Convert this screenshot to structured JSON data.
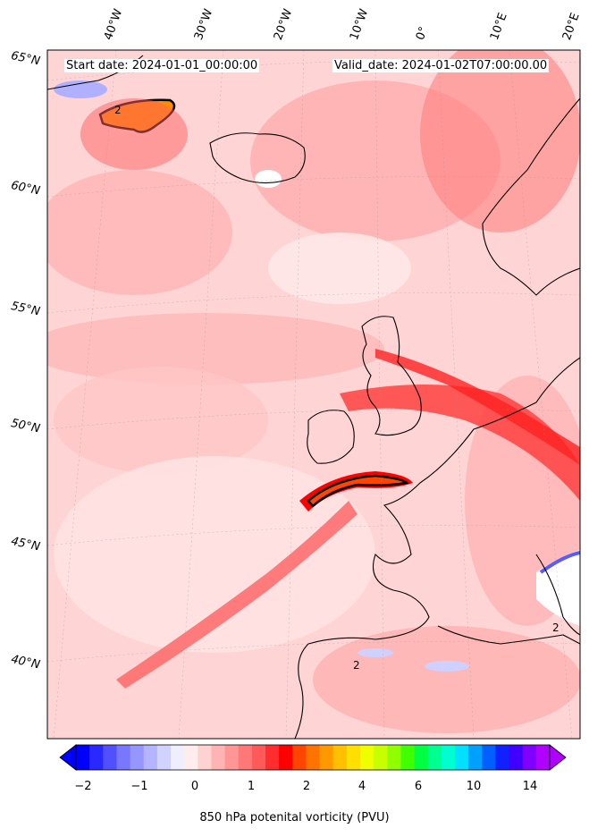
{
  "map": {
    "start_date": "Start date: 2024-01-01_00:00:00",
    "valid_date": "Valid_date: 2024-01-02T07:00:00.00",
    "lat_labels": [
      "65°N",
      "60°N",
      "55°N",
      "50°N",
      "45°N",
      "40°N"
    ],
    "lon_labels": [
      "40°W",
      "30°W",
      "20°W",
      "10°W",
      "0°",
      "10°E",
      "20°E"
    ],
    "contour_label": "2",
    "colors": {
      "background_low": "#ffd9d9",
      "mid": "#ff7a7a",
      "high": "#ff0000",
      "peak": "#ff8c00",
      "negative": "#9a9aff",
      "coast": "#000000"
    }
  },
  "colorbar": {
    "ticks": [
      "−2",
      "−1",
      "0",
      "1",
      "2",
      "4",
      "6",
      "10",
      "14"
    ],
    "label": "850 hPa potenital vorticity (PVU)",
    "colors": [
      "#0000ff",
      "#2828ff",
      "#5050ff",
      "#7878ff",
      "#9696ff",
      "#b4b4ff",
      "#d2d2ff",
      "#eeeeff",
      "#ffecec",
      "#ffd2d2",
      "#ffb4b4",
      "#ff9696",
      "#ff7878",
      "#ff5a5a",
      "#ff2d2d",
      "#ff0000",
      "#ff4500",
      "#ff7300",
      "#ff9900",
      "#ffc000",
      "#ffe000",
      "#f0ff00",
      "#c8ff00",
      "#90ff00",
      "#40ff00",
      "#00ff40",
      "#00ff90",
      "#00ffd0",
      "#00e0ff",
      "#00a0ff",
      "#0060ff",
      "#1020ff",
      "#4000ff",
      "#8000ff",
      "#b000ff"
    ]
  }
}
